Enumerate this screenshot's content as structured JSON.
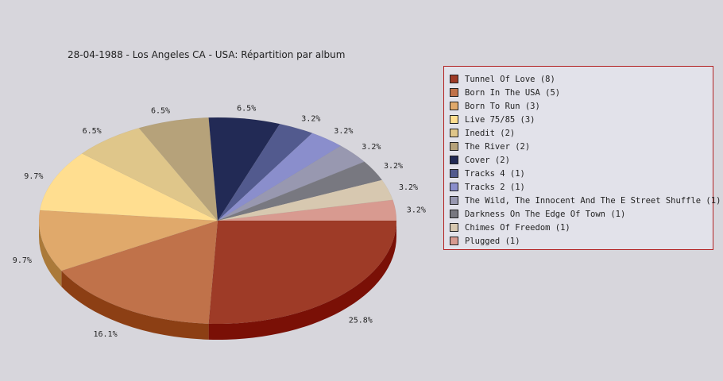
{
  "chart_data": {
    "type": "pie",
    "title": "28-04-1988 - Los Angeles CA - USA:  Répartition par album",
    "legend_position": "right",
    "slices": [
      {
        "label": "Tunnel Of Love",
        "count": 8,
        "percent": "25.8%",
        "color": "#9e3b27",
        "side": "#7a1006"
      },
      {
        "label": "Born In The USA",
        "count": 5,
        "percent": "16.1%",
        "color": "#c0724a",
        "side": "#8c3f14"
      },
      {
        "label": "Born To Run",
        "count": 3,
        "percent": "9.7%",
        "color": "#e0a96b",
        "side": "#ab7a3a"
      },
      {
        "label": "Live 75/85",
        "count": 3,
        "percent": "9.7%",
        "color": "#ffde90",
        "side": "#c8a45a"
      },
      {
        "label": "Inedit",
        "count": 2,
        "percent": "6.5%",
        "color": "#dfc68a",
        "side": "#a8925a"
      },
      {
        "label": "The River",
        "count": 2,
        "percent": "6.5%",
        "color": "#b6a27a",
        "side": "#86744e"
      },
      {
        "label": "Cover",
        "count": 2,
        "percent": "6.5%",
        "color": "#222a55",
        "side": "#11163a"
      },
      {
        "label": "Tracks 4",
        "count": 1,
        "percent": "3.2%",
        "color": "#525a8e",
        "side": "#363c66"
      },
      {
        "label": "Tracks 2",
        "count": 1,
        "percent": "3.2%",
        "color": "#8a8ecc",
        "side": "#5e6298"
      },
      {
        "label": "The Wild, The Innocent And The E Street Shuffle",
        "count": 1,
        "percent": "3.2%",
        "color": "#9898b0",
        "side": "#6c6c84"
      },
      {
        "label": "Darkness On The Edge Of Town",
        "count": 1,
        "percent": "3.2%",
        "color": "#787880",
        "side": "#55555c"
      },
      {
        "label": "Chimes Of Freedom",
        "count": 1,
        "percent": "3.2%",
        "color": "#d7c8b0",
        "side": "#a89a82"
      },
      {
        "label": "Plugged",
        "count": 1,
        "percent": "3.2%",
        "color": "#d89a90",
        "side": "#a86e64"
      }
    ]
  }
}
